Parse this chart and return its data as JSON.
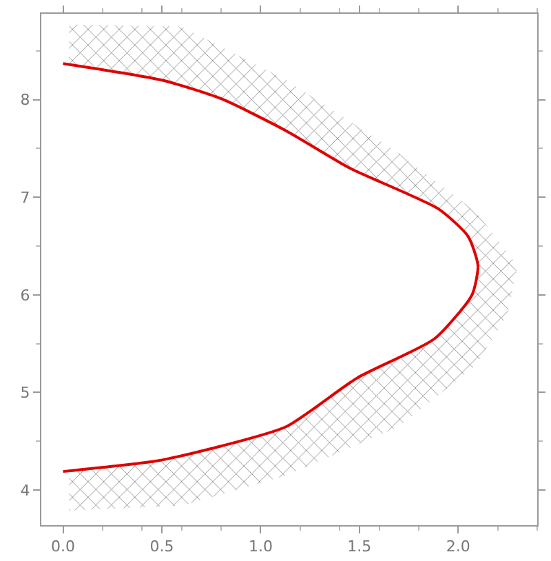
{
  "chart_data": {
    "type": "line",
    "xlim": [
      -0.11,
      2.4
    ],
    "ylim": [
      3.64,
      8.88
    ],
    "xticks": [
      {
        "value": 0,
        "label": "0.0"
      },
      0.5,
      {
        "value": 1,
        "label": "1.0"
      },
      1.5,
      {
        "value": 2,
        "label": "2.0"
      }
    ],
    "yticks": [
      4,
      5,
      6,
      7,
      8
    ],
    "series": [
      {
        "type": "area",
        "color": "#808080",
        "x": [
          0.03,
          0.6,
          1.13,
          1.7,
          2.09,
          2.3,
          2.25,
          2.09,
          1.7,
          1.13,
          0.6,
          0.03,
          0.03,
          0.48,
          0.8,
          1.13,
          1.49,
          1.88,
          2.07,
          2.1,
          2.05,
          1.9,
          1.45,
          1.13,
          0.8,
          0.5,
          0.03
        ],
        "values": [
          8.77,
          8.75,
          8.2,
          7.45,
          6.85,
          6.3,
          5.8,
          5.28,
          4.65,
          4.15,
          3.84,
          3.79,
          4.19,
          4.3,
          4.45,
          4.65,
          5.15,
          5.55,
          6.0,
          6.3,
          6.6,
          6.88,
          7.3,
          7.68,
          8.01,
          8.2,
          8.37
        ]
      },
      {
        "color": "#e00000",
        "x": [
          0,
          0.5,
          0.8,
          1.13,
          1.45,
          1.9,
          2.05,
          2.1,
          2.07,
          1.88,
          1.49,
          1.13,
          0.8,
          0.48,
          0
        ],
        "values": [
          8.37,
          8.2,
          8.01,
          7.68,
          7.3,
          6.88,
          6.6,
          6.3,
          6.0,
          5.55,
          5.15,
          4.65,
          4.45,
          4.3,
          4.19
        ]
      }
    ],
    "marker": "none"
  }
}
